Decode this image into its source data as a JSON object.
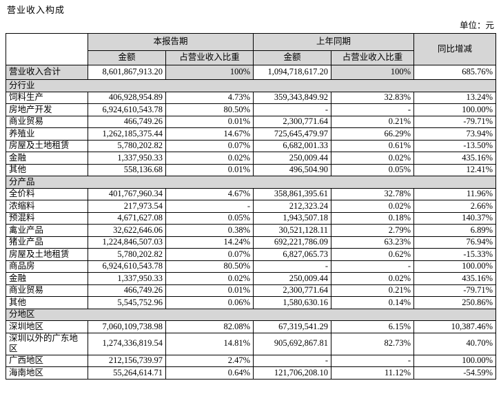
{
  "page": {
    "title": "营业收入构成",
    "unit_label": "单位：元"
  },
  "colors": {
    "header_bg": "#d6d6d6",
    "border": "#000000",
    "text": "#000000"
  },
  "table": {
    "headers": {
      "current_period": "本报告期",
      "prior_period": "上年同期",
      "yoy": "同比增减",
      "amount": "金额",
      "ratio": "占营业收入比重"
    },
    "total_row": {
      "label": "营业收入合计",
      "cells": [
        "8,601,867,913.20",
        "100%",
        "1,094,718,617.20",
        "100%",
        "685.76%"
      ]
    },
    "sections": [
      {
        "name": "分行业",
        "rows": [
          {
            "label": "饲料生产",
            "cells": [
              "406,928,954.89",
              "4.73%",
              "359,343,849.92",
              "32.83%",
              "13.24%"
            ]
          },
          {
            "label": "房地产开发",
            "cells": [
              "6,924,610,543.78",
              "80.50%",
              "-",
              "-",
              "100.00%"
            ]
          },
          {
            "label": "商业贸易",
            "cells": [
              "466,749.26",
              "0.01%",
              "2,300,771.64",
              "0.21%",
              "-79.71%"
            ]
          },
          {
            "label": "养殖业",
            "cells": [
              "1,262,185,375.44",
              "14.67%",
              "725,645,479.97",
              "66.29%",
              "73.94%"
            ]
          },
          {
            "label": "房屋及土地租赁",
            "cells": [
              "5,780,202.82",
              "0.07%",
              "6,682,001.33",
              "0.61%",
              "-13.50%"
            ]
          },
          {
            "label": "金融",
            "cells": [
              "1,337,950.33",
              "0.02%",
              "250,009.44",
              "0.02%",
              "435.16%"
            ]
          },
          {
            "label": "其他",
            "cells": [
              "558,136.68",
              "0.01%",
              "496,504.90",
              "0.05%",
              "12.41%"
            ]
          }
        ]
      },
      {
        "name": "分产品",
        "rows": [
          {
            "label": "全价料",
            "cells": [
              "401,767,960.34",
              "4.67%",
              "358,861,395.61",
              "32.78%",
              "11.96%"
            ]
          },
          {
            "label": "浓缩料",
            "cells": [
              "217,973.54",
              "-",
              "212,323.24",
              "0.02%",
              "2.66%"
            ]
          },
          {
            "label": "预混料",
            "cells": [
              "4,671,627.08",
              "0.05%",
              "1,943,507.18",
              "0.18%",
              "140.37%"
            ]
          },
          {
            "label": "禽业产品",
            "cells": [
              "32,622,646.06",
              "0.38%",
              "30,521,128.11",
              "2.79%",
              "6.89%"
            ]
          },
          {
            "label": "猪业产品",
            "cells": [
              "1,224,846,507.03",
              "14.24%",
              "692,221,786.09",
              "63.23%",
              "76.94%"
            ]
          },
          {
            "label": "房屋及土地租赁",
            "cells": [
              "5,780,202.82",
              "0.07%",
              "6,827,065.73",
              "0.62%",
              "-15.33%"
            ]
          },
          {
            "label": "商品房",
            "cells": [
              "6,924,610,543.78",
              "80.50%",
              "-",
              "-",
              "100.00%"
            ]
          },
          {
            "label": "金融",
            "cells": [
              "1,337,950.33",
              "0.02%",
              "250,009.44",
              "0.02%",
              "435.16%"
            ]
          },
          {
            "label": "商业贸易",
            "cells": [
              "466,749.26",
              "0.01%",
              "2,300,771.64",
              "0.21%",
              "-79.71%"
            ]
          },
          {
            "label": "其他",
            "cells": [
              "5,545,752.96",
              "0.06%",
              "1,580,630.16",
              "0.14%",
              "250.86%"
            ]
          }
        ]
      },
      {
        "name": "分地区",
        "rows": [
          {
            "label": "深圳地区",
            "cells": [
              "7,060,109,738.98",
              "82.08%",
              "67,319,541.29",
              "6.15%",
              "10,387.46%"
            ]
          },
          {
            "label": "深圳以外的广东地区",
            "cells": [
              "1,274,336,819.54",
              "14.81%",
              "905,692,867.81",
              "82.73%",
              "40.70%"
            ]
          },
          {
            "label": "广西地区",
            "cells": [
              "212,156,739.97",
              "2.47%",
              "-",
              "-",
              "100.00%"
            ]
          },
          {
            "label": "海南地区",
            "cells": [
              "55,264,614.71",
              "0.64%",
              "121,706,208.10",
              "11.12%",
              "-54.59%"
            ]
          }
        ]
      }
    ]
  }
}
